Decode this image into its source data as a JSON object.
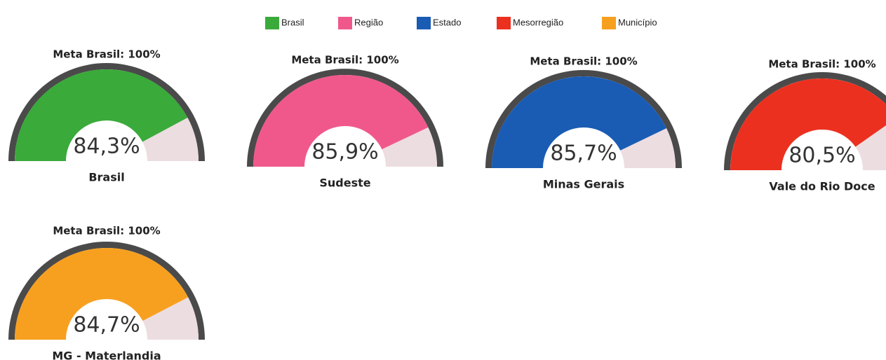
{
  "chart_data": {
    "type": "gauge",
    "legend": [
      {
        "name": "Brasil",
        "color": "#3aaa3a"
      },
      {
        "name": "Região",
        "color": "#f0588c"
      },
      {
        "name": "Estado",
        "color": "#1a5cb4"
      },
      {
        "name": "Mesorregião",
        "color": "#ec3020"
      },
      {
        "name": "Município",
        "color": "#f7a020"
      }
    ],
    "target_label": "Meta Brasil: 100%",
    "ylim": [
      0,
      100
    ],
    "categories": [
      "Brasil",
      "Sudeste",
      "Minas Gerais",
      "Vale do Rio Doce",
      "MG - Materlandia"
    ],
    "values": [
      84.3,
      85.9,
      85.7,
      80.5,
      84.7
    ],
    "value_labels": [
      "84,3%",
      "85,9%",
      "85,7%",
      "80,5%",
      "84,7%"
    ],
    "colors": [
      "#3aaa3a",
      "#f0588c",
      "#1a5cb4",
      "#ec3020",
      "#f7a020"
    ],
    "remainder_color": "#ecdde0"
  }
}
